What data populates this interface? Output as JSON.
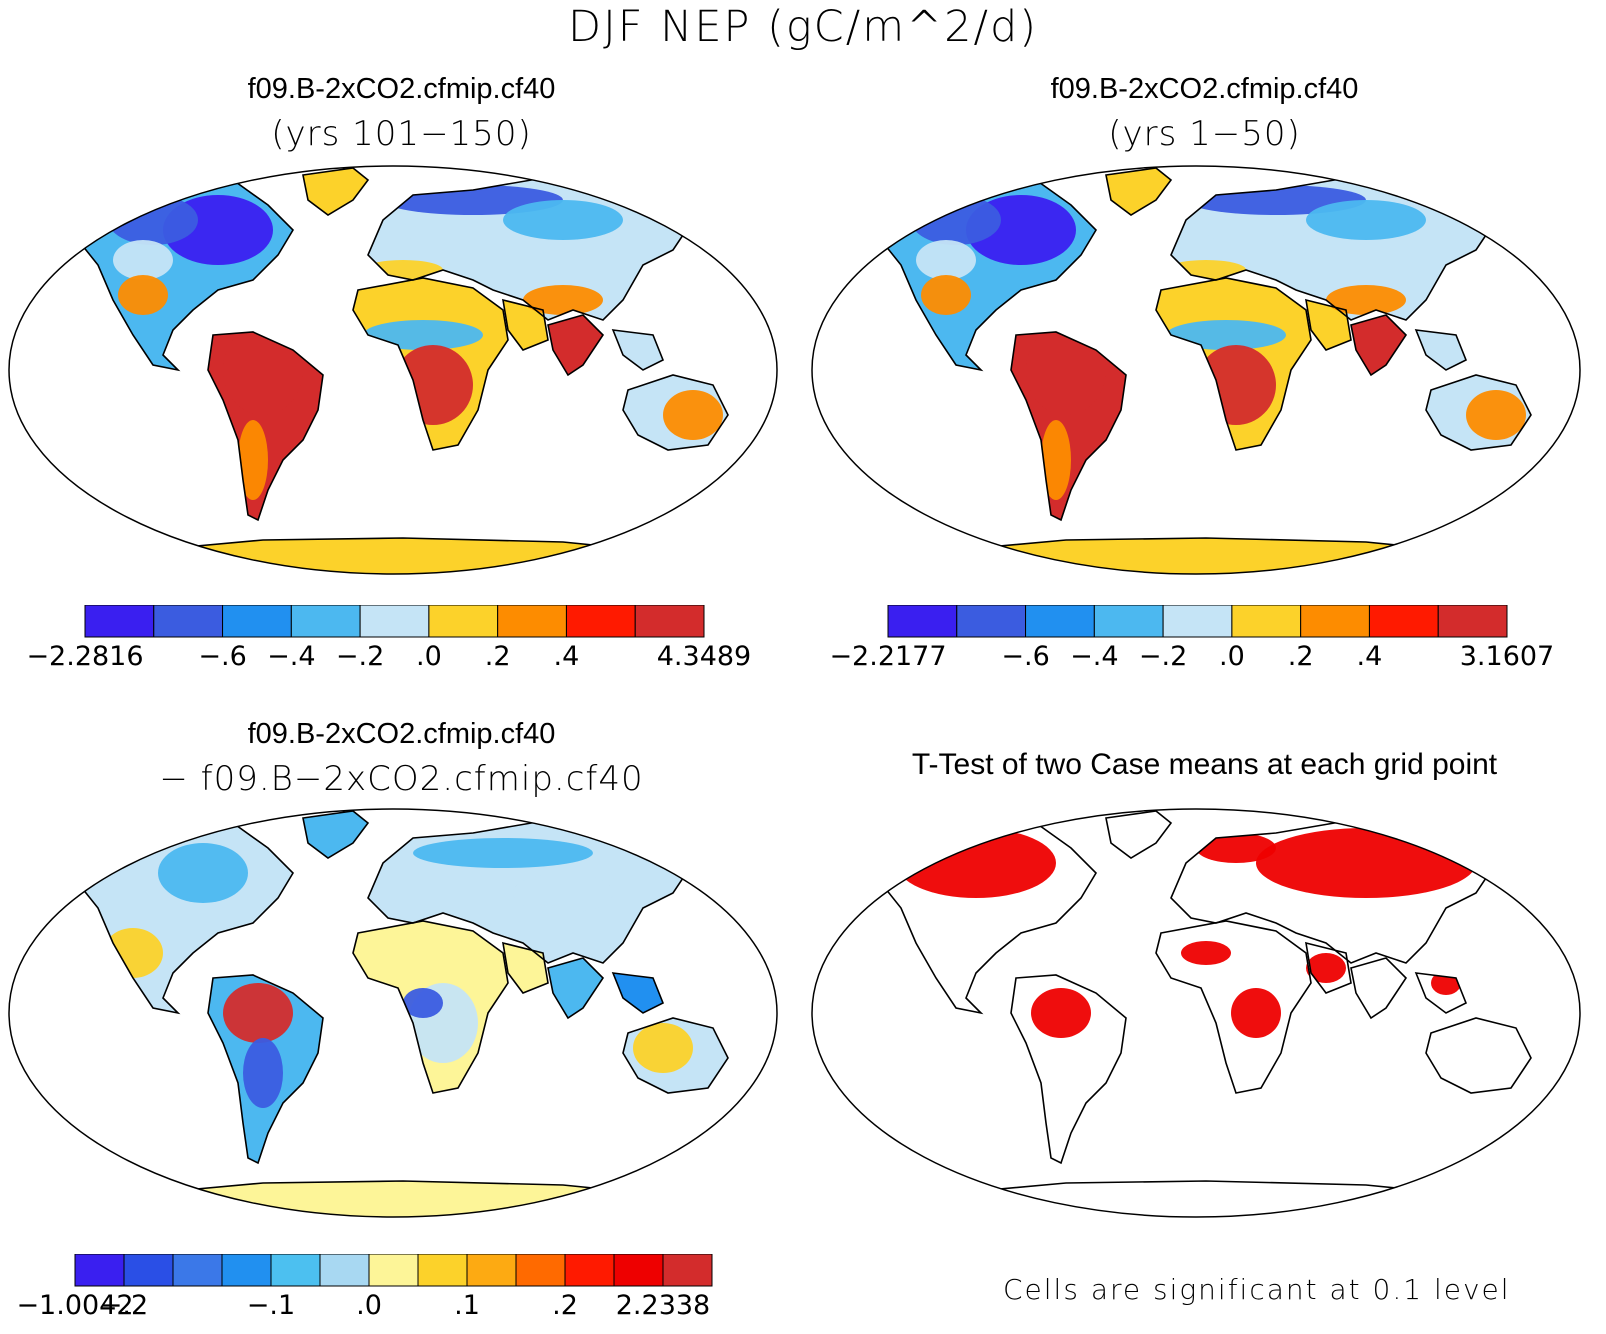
{
  "title": "DJF NEP (gC/m^2/d)",
  "colors": {
    "blue5": "#3a1ff0",
    "blue4": "#3b5ce0",
    "blue3": "#2190f0",
    "blue2": "#4cb8f0",
    "blue1": "#c5e4f6",
    "yellow": "#fcd22a",
    "orange": "#fd8c00",
    "red": "#ff1a00",
    "darkred": "#d32c2c",
    "paleyellow": "#fdf598",
    "orange2": "#ff6a00",
    "red2": "#fd4000",
    "sig": "#ee0000"
  },
  "panels": [
    {
      "title": "f09.B-2xCO2.cfmip.cf40",
      "subtitle": "(yrs 101−150)",
      "colorbar": {
        "colors": [
          "#3a1ff0",
          "#3b5ce0",
          "#2190f0",
          "#4cb8f0",
          "#c5e4f6",
          "#fcd22a",
          "#fd8c00",
          "#ff1a00",
          "#d32c2c"
        ],
        "labels": [
          "−2.2816",
          "−.6",
          "−.4",
          "−.2",
          ".0",
          ".2",
          ".4",
          "4.3489"
        ],
        "label_slots": [
          0,
          2,
          3,
          4,
          5,
          6,
          7,
          9
        ]
      }
    },
    {
      "title": "f09.B-2xCO2.cfmip.cf40",
      "subtitle": "(yrs 1−50)",
      "colorbar": {
        "colors": [
          "#3a1ff0",
          "#3b5ce0",
          "#2190f0",
          "#4cb8f0",
          "#c5e4f6",
          "#fcd22a",
          "#fd8c00",
          "#ff1a00",
          "#d32c2c"
        ],
        "labels": [
          "−2.2177",
          "−.6",
          "−.4",
          "−.2",
          ".0",
          ".2",
          ".4",
          "3.1607"
        ],
        "label_slots": [
          0,
          2,
          3,
          4,
          5,
          6,
          7,
          9
        ]
      }
    },
    {
      "title": "f09.B-2xCO2.cfmip.cf40",
      "subtitle": "− f09.B−2xCO2.cfmip.cf40",
      "colorbar": {
        "colors": [
          "#3a1ff0",
          "#2a4fe6",
          "#3b78e8",
          "#2190f0",
          "#4cc0f0",
          "#a8d8f2",
          "#fdf598",
          "#fcd22a",
          "#fdaa12",
          "#ff6a00",
          "#ff1a00",
          "#ee0000",
          "#d32c2c"
        ],
        "labels": [
          "−1.0042",
          "−.2",
          "−.1",
          ".0",
          ".1",
          ".2",
          "2.2338"
        ],
        "label_slots": [
          0,
          1,
          4,
          6,
          8,
          10,
          12
        ]
      }
    },
    {
      "title": "T-Test of two Case means at each grid point",
      "note": "Cells are significant at 0.1 level"
    }
  ]
}
